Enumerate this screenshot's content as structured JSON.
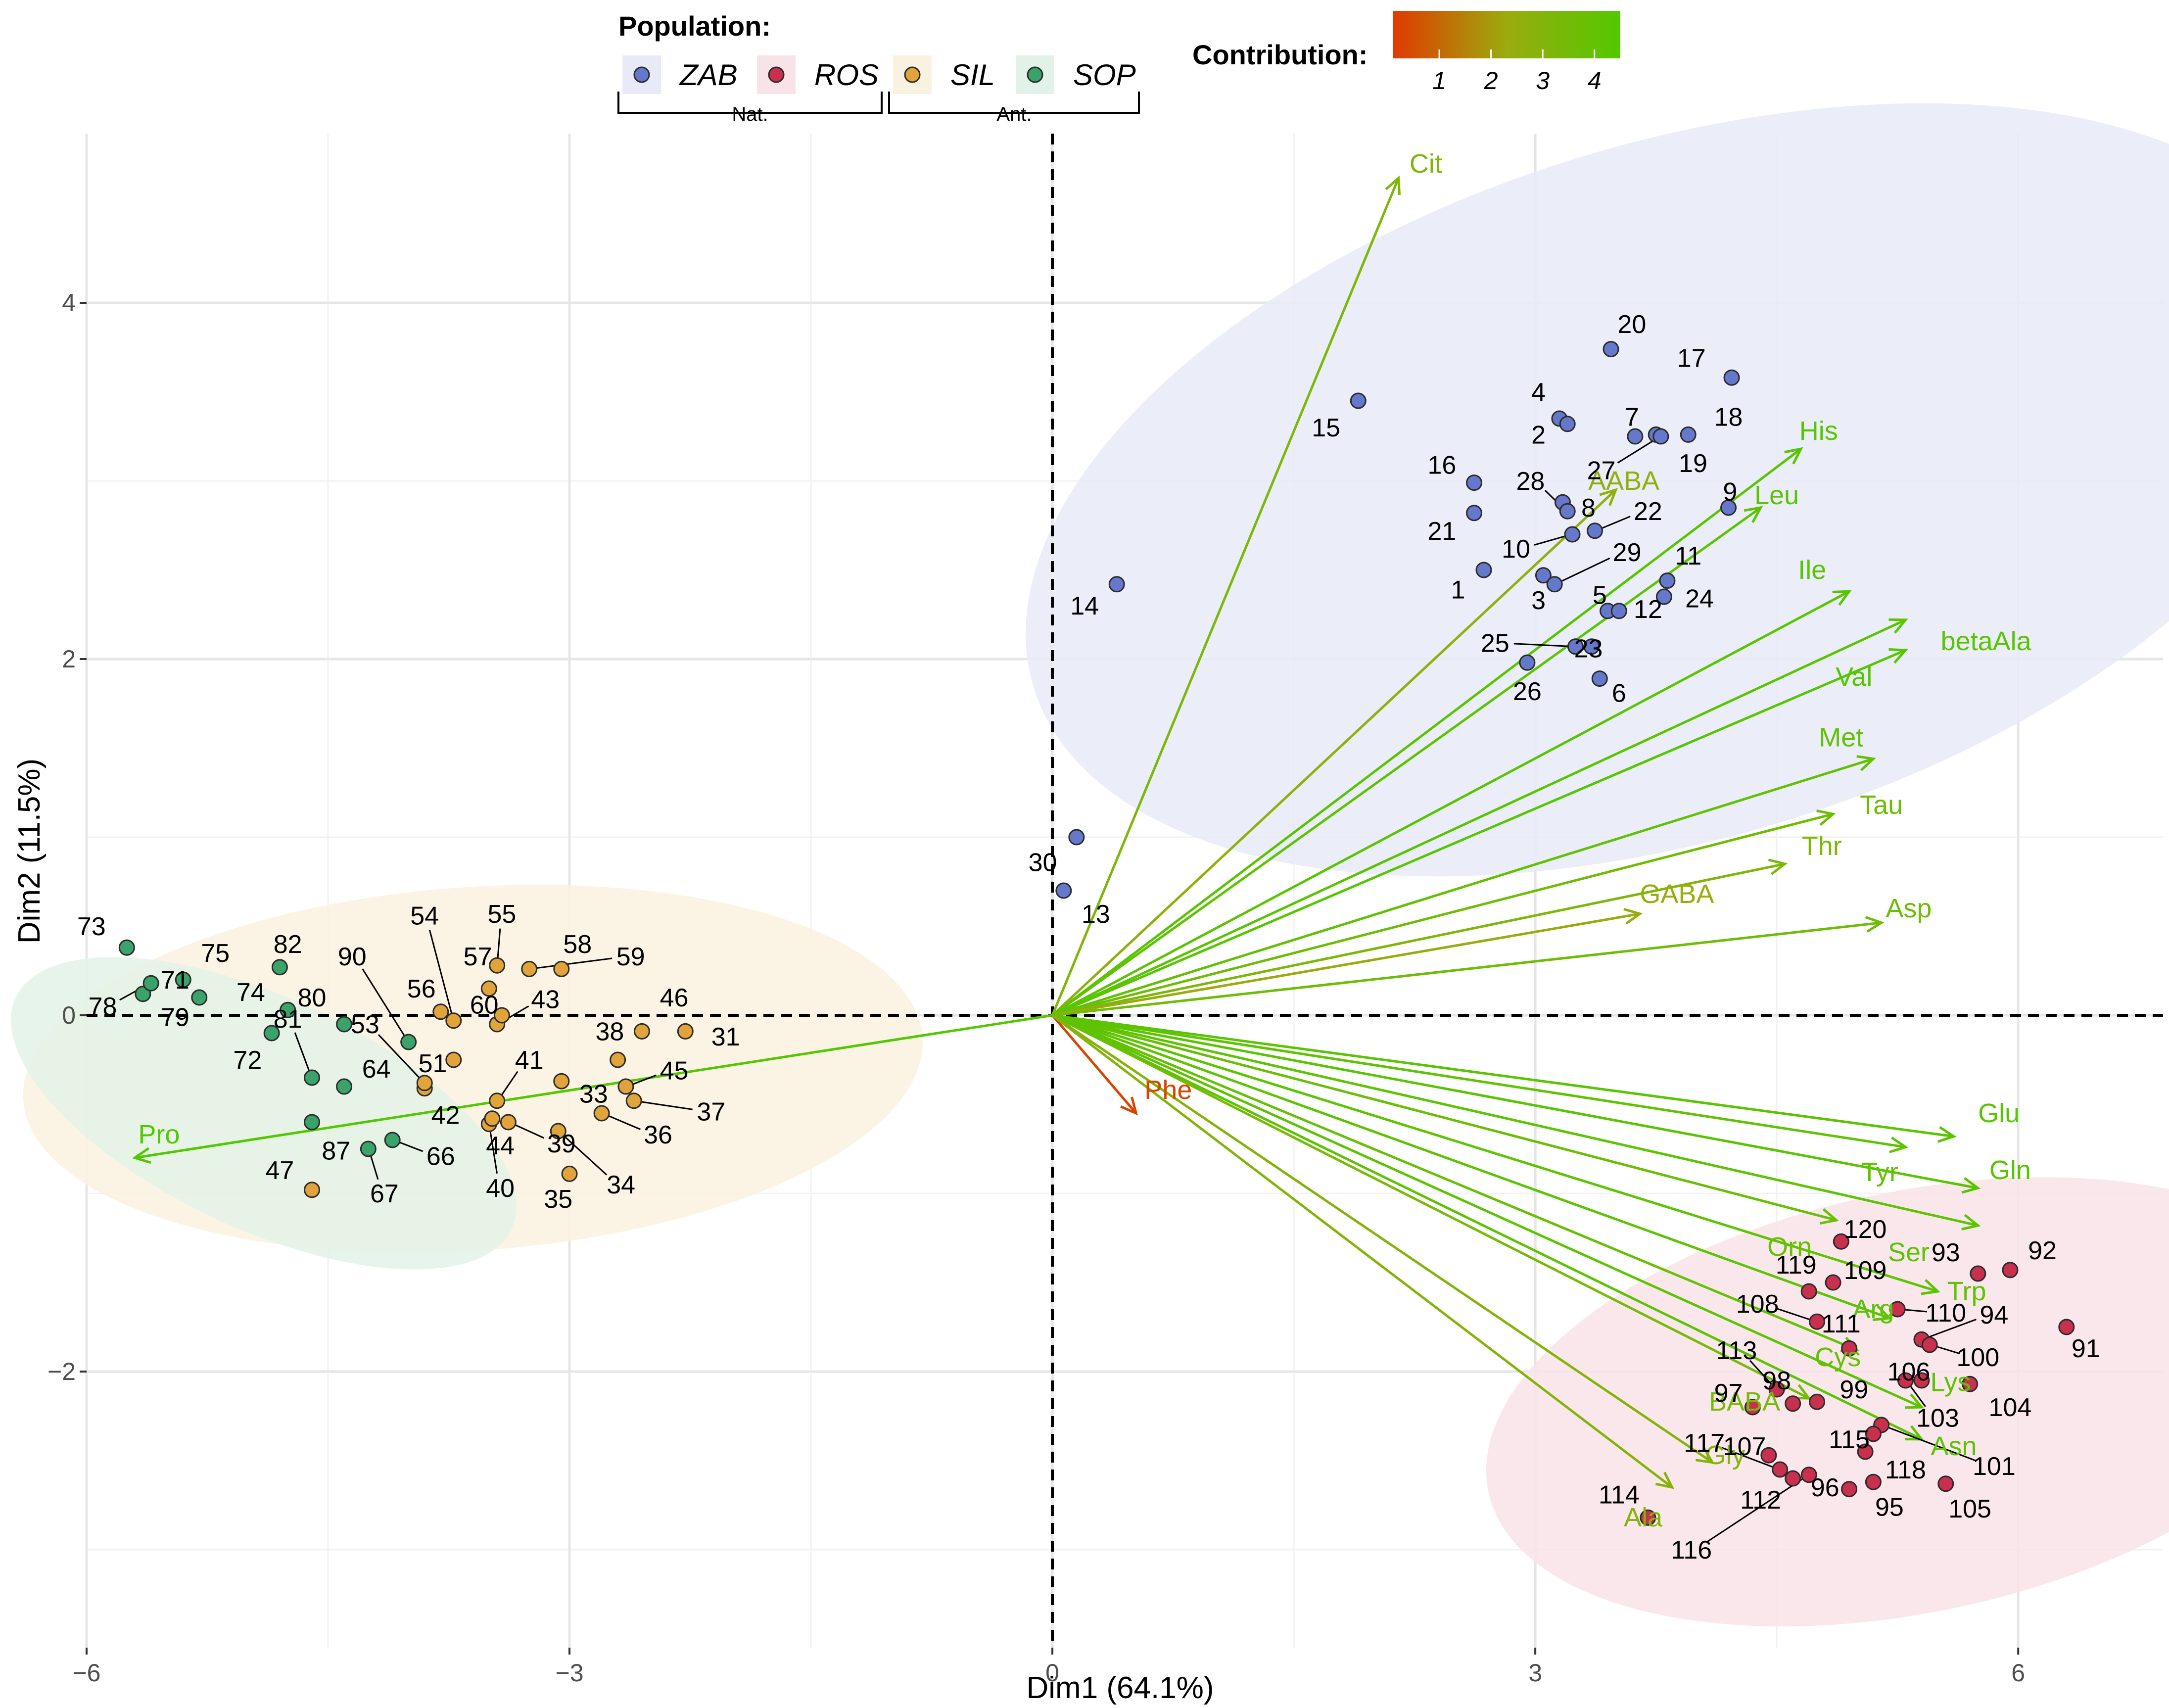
{
  "chart_data": {
    "type": "biplot",
    "xlabel": "Dim1 (64.1%)",
    "ylabel": "Dim2 (11.5%)",
    "xlim": [
      -6.0,
      6.9
    ],
    "ylim": [
      -3.55,
      4.95
    ],
    "xticks": [
      -6,
      -3,
      0,
      3,
      6
    ],
    "xtick_labels": [
      "−6",
      "−3",
      "0",
      "3",
      "6"
    ],
    "yticks": [
      -2,
      0,
      2,
      4
    ],
    "ytick_labels": [
      "−2",
      "0",
      "2",
      "4"
    ],
    "legend": {
      "title": "Population:",
      "groups": [
        {
          "name": "ZAB",
          "color": "#6678cc",
          "fill": "#e8eaf7"
        },
        {
          "name": "ROS",
          "color": "#c8304e",
          "fill": "#f8e3e8"
        },
        {
          "name": "SIL",
          "color": "#e0a43a",
          "fill": "#faf2e1"
        },
        {
          "name": "SOP",
          "color": "#3aa36a",
          "fill": "#e3f2e8"
        }
      ],
      "brackets": [
        "Nat.",
        "Ant."
      ]
    },
    "colorbar": {
      "title": "Contribution:",
      "ticks": [
        "1",
        "2",
        "3",
        "4"
      ],
      "tick_values": [
        1,
        2,
        3,
        4
      ],
      "range": [
        0.1,
        4.5
      ],
      "colors": [
        "#e03a00",
        "#9bab0e",
        "#52c800"
      ]
    },
    "ellipses": [
      {
        "group": "ZAB",
        "cx": 3.9,
        "cy": 2.95,
        "rx": 4.2,
        "ry": 1.95,
        "angle": 17
      },
      {
        "group": "ROS",
        "cx": 5.35,
        "cy": -2.17,
        "rx": 2.7,
        "ry": 1.18,
        "angle": 12
      },
      {
        "group": "SIL",
        "cx": -3.6,
        "cy": -0.3,
        "rx": 2.8,
        "ry": 1.02,
        "angle": 4
      },
      {
        "group": "SOP",
        "cx": -4.9,
        "cy": -0.55,
        "rx": 1.7,
        "ry": 0.65,
        "angle": -25
      }
    ],
    "variables": [
      {
        "name": "Cit",
        "x": 2.15,
        "y": 4.7,
        "contrib": 3.2,
        "lx": 2.32,
        "ly": 4.78
      },
      {
        "name": "His",
        "x": 4.65,
        "y": 3.18,
        "contrib": 4.3,
        "lx": 4.76,
        "ly": 3.28
      },
      {
        "name": "AABA",
        "x": 3.5,
        "y": 2.95,
        "contrib": 2.6,
        "lx": 3.55,
        "ly": 3.0
      },
      {
        "name": "Leu",
        "x": 4.4,
        "y": 2.85,
        "contrib": 4.2,
        "lx": 4.5,
        "ly": 2.92
      },
      {
        "name": "Ile",
        "x": 4.95,
        "y": 2.38,
        "contrib": 4.3,
        "lx": 4.72,
        "ly": 2.5
      },
      {
        "name": "betaAla",
        "x": 5.3,
        "y": 2.22,
        "contrib": 4.3,
        "lx": 5.8,
        "ly": 2.1
      },
      {
        "name": "Val",
        "x": 5.3,
        "y": 2.05,
        "contrib": 4.4,
        "lx": 4.98,
        "ly": 1.9
      },
      {
        "name": "Met",
        "x": 5.1,
        "y": 1.44,
        "contrib": 4.0,
        "lx": 4.9,
        "ly": 1.56
      },
      {
        "name": "Tau",
        "x": 4.85,
        "y": 1.13,
        "contrib": 3.7,
        "lx": 5.15,
        "ly": 1.18
      },
      {
        "name": "Thr",
        "x": 4.55,
        "y": 0.85,
        "contrib": 3.2,
        "lx": 4.78,
        "ly": 0.95
      },
      {
        "name": "GABA",
        "x": 3.65,
        "y": 0.57,
        "contrib": 2.4,
        "lx": 3.88,
        "ly": 0.68
      },
      {
        "name": "Asp",
        "x": 5.15,
        "y": 0.52,
        "contrib": 3.7,
        "lx": 5.32,
        "ly": 0.6
      },
      {
        "name": "Pro",
        "x": -5.7,
        "y": -0.8,
        "contrib": 4.5,
        "lx": -5.55,
        "ly": -0.67
      },
      {
        "name": "Phe",
        "x": 0.52,
        "y": -0.55,
        "contrib": 0.3,
        "lx": 0.72,
        "ly": -0.42
      },
      {
        "name": "Glu",
        "x": 5.6,
        "y": -0.68,
        "contrib": 4.3,
        "lx": 5.88,
        "ly": -0.55
      },
      {
        "name": "Tyr",
        "x": 5.3,
        "y": -0.74,
        "contrib": 4.1,
        "lx": 5.14,
        "ly": -0.88
      },
      {
        "name": "Gln",
        "x": 5.75,
        "y": -0.97,
        "contrib": 4.3,
        "lx": 5.95,
        "ly": -0.87
      },
      {
        "name": "Ser",
        "x": 5.75,
        "y": -1.18,
        "contrib": 4.2,
        "lx": 5.32,
        "ly": -1.33
      },
      {
        "name": "Orn",
        "x": 4.87,
        "y": -1.15,
        "contrib": 3.8,
        "lx": 4.58,
        "ly": -1.3
      },
      {
        "name": "Trp",
        "x": 5.5,
        "y": -1.55,
        "contrib": 4.2,
        "lx": 5.68,
        "ly": -1.55
      },
      {
        "name": "Arg",
        "x": 5.2,
        "y": -1.7,
        "contrib": 4.2,
        "lx": 5.1,
        "ly": -1.65
      },
      {
        "name": "Cys",
        "x": 5.0,
        "y": -1.88,
        "contrib": 3.9,
        "lx": 4.88,
        "ly": -1.92
      },
      {
        "name": "Lys",
        "x": 5.4,
        "y": -2.2,
        "contrib": 4.2,
        "lx": 5.58,
        "ly": -2.06
      },
      {
        "name": "BABA",
        "x": 4.7,
        "y": -2.15,
        "contrib": 3.4,
        "lx": 4.3,
        "ly": -2.17
      },
      {
        "name": "Asn",
        "x": 5.4,
        "y": -2.38,
        "contrib": 4.2,
        "lx": 5.6,
        "ly": -2.42
      },
      {
        "name": "Gly",
        "x": 4.1,
        "y": -2.51,
        "contrib": 3.0,
        "lx": 4.18,
        "ly": -2.47
      },
      {
        "name": "Ala",
        "x": 3.85,
        "y": -2.65,
        "contrib": 3.0,
        "lx": 3.67,
        "ly": -2.82
      }
    ],
    "points": [
      {
        "id": "1",
        "group": "ZAB",
        "x": 2.68,
        "y": 2.5,
        "lx": 2.52,
        "ly": 2.39
      },
      {
        "id": "2",
        "group": "ZAB",
        "x": 3.15,
        "y": 3.35,
        "lx": 3.02,
        "ly": 3.26
      },
      {
        "id": "3",
        "group": "ZAB",
        "x": 3.05,
        "y": 2.47,
        "lx": 3.02,
        "ly": 2.33
      },
      {
        "id": "4",
        "group": "ZAB",
        "x": 3.2,
        "y": 3.32,
        "lx": 3.02,
        "ly": 3.5
      },
      {
        "id": "5",
        "group": "ZAB",
        "x": 3.45,
        "y": 2.27,
        "lx": 3.4,
        "ly": 2.36
      },
      {
        "id": "6",
        "group": "ZAB",
        "x": 3.4,
        "y": 1.89,
        "lx": 3.52,
        "ly": 1.81
      },
      {
        "id": "7",
        "group": "ZAB",
        "x": 3.62,
        "y": 3.25,
        "lx": 3.6,
        "ly": 3.36
      },
      {
        "id": "8",
        "group": "ZAB",
        "x": 3.17,
        "y": 2.88,
        "lx": 3.33,
        "ly": 2.85
      },
      {
        "id": "9",
        "group": "ZAB",
        "x": 4.2,
        "y": 2.85,
        "lx": 4.21,
        "ly": 2.94
      },
      {
        "id": "10",
        "group": "ZAB",
        "x": 3.23,
        "y": 2.7,
        "lx": 2.88,
        "ly": 2.62
      },
      {
        "id": "11",
        "group": "ZAB",
        "x": 3.82,
        "y": 2.44,
        "lx": 3.95,
        "ly": 2.58
      },
      {
        "id": "12",
        "group": "ZAB",
        "x": 3.52,
        "y": 2.27,
        "lx": 3.7,
        "ly": 2.28
      },
      {
        "id": "13",
        "group": "ZAB",
        "x": 0.07,
        "y": 0.7,
        "lx": 0.27,
        "ly": 0.57
      },
      {
        "id": "14",
        "group": "ZAB",
        "x": 0.4,
        "y": 2.42,
        "lx": 0.2,
        "ly": 2.3
      },
      {
        "id": "15",
        "group": "ZAB",
        "x": 1.9,
        "y": 3.45,
        "lx": 1.7,
        "ly": 3.3
      },
      {
        "id": "16",
        "group": "ZAB",
        "x": 2.62,
        "y": 2.99,
        "lx": 2.42,
        "ly": 3.09
      },
      {
        "id": "17",
        "group": "ZAB",
        "x": 4.22,
        "y": 3.58,
        "lx": 3.97,
        "ly": 3.69
      },
      {
        "id": "18",
        "group": "ZAB",
        "x": 3.95,
        "y": 3.26,
        "lx": 4.2,
        "ly": 3.36
      },
      {
        "id": "19",
        "group": "ZAB",
        "x": 3.75,
        "y": 3.26,
        "lx": 3.98,
        "ly": 3.1
      },
      {
        "id": "20",
        "group": "ZAB",
        "x": 3.47,
        "y": 3.74,
        "lx": 3.6,
        "ly": 3.88
      },
      {
        "id": "21",
        "group": "ZAB",
        "x": 2.62,
        "y": 2.82,
        "lx": 2.42,
        "ly": 2.72
      },
      {
        "id": "22",
        "group": "ZAB",
        "x": 3.37,
        "y": 2.72,
        "lx": 3.7,
        "ly": 2.83
      },
      {
        "id": "23",
        "group": "ZAB",
        "x": 3.35,
        "y": 2.07,
        "lx": 3.33,
        "ly": 2.06
      },
      {
        "id": "24",
        "group": "ZAB",
        "x": 3.8,
        "y": 2.35,
        "lx": 4.02,
        "ly": 2.34
      },
      {
        "id": "25",
        "group": "ZAB",
        "x": 3.25,
        "y": 2.07,
        "lx": 2.75,
        "ly": 2.09
      },
      {
        "id": "26",
        "group": "ZAB",
        "x": 2.95,
        "y": 1.98,
        "lx": 2.95,
        "ly": 1.82
      },
      {
        "id": "27",
        "group": "ZAB",
        "x": 3.78,
        "y": 3.25,
        "lx": 3.41,
        "ly": 3.06
      },
      {
        "id": "28",
        "group": "ZAB",
        "x": 3.2,
        "y": 2.83,
        "lx": 2.97,
        "ly": 3.0
      },
      {
        "id": "29",
        "group": "ZAB",
        "x": 3.12,
        "y": 2.42,
        "lx": 3.57,
        "ly": 2.6
      },
      {
        "id": "30",
        "group": "ZAB",
        "x": 0.15,
        "y": 1.0,
        "lx": -0.06,
        "ly": 0.86
      },
      {
        "id": "31",
        "group": "SIL",
        "x": -2.28,
        "y": -0.09,
        "lx": -2.03,
        "ly": -0.12
      },
      {
        "id": "33",
        "group": "SIL",
        "x": -3.05,
        "y": -0.37,
        "lx": -2.85,
        "ly": -0.44
      },
      {
        "id": "34",
        "group": "SIL",
        "x": -3.07,
        "y": -0.65,
        "lx": -2.68,
        "ly": -0.95
      },
      {
        "id": "35",
        "group": "SIL",
        "x": -3.0,
        "y": -0.89,
        "lx": -3.07,
        "ly": -1.03
      },
      {
        "id": "36",
        "group": "SIL",
        "x": -2.8,
        "y": -0.55,
        "lx": -2.45,
        "ly": -0.67
      },
      {
        "id": "37",
        "group": "SIL",
        "x": -2.6,
        "y": -0.48,
        "lx": -2.12,
        "ly": -0.54
      },
      {
        "id": "38",
        "group": "SIL",
        "x": -2.7,
        "y": -0.25,
        "lx": -2.75,
        "ly": -0.09
      },
      {
        "id": "39",
        "group": "SIL",
        "x": -3.38,
        "y": -0.6,
        "lx": -3.05,
        "ly": -0.72
      },
      {
        "id": "40",
        "group": "SIL",
        "x": -3.5,
        "y": -0.61,
        "lx": -3.43,
        "ly": -0.97
      },
      {
        "id": "41",
        "group": "SIL",
        "x": -3.45,
        "y": -0.48,
        "lx": -3.25,
        "ly": -0.25
      },
      {
        "id": "42",
        "group": "SIL",
        "x": -3.9,
        "y": -0.41,
        "lx": -3.77,
        "ly": -0.56
      },
      {
        "id": "43",
        "group": "SIL",
        "x": -3.45,
        "y": -0.05,
        "lx": -3.15,
        "ly": 0.09
      },
      {
        "id": "44",
        "group": "SIL",
        "x": -3.48,
        "y": -0.58,
        "lx": -3.43,
        "ly": -0.73
      },
      {
        "id": "45",
        "group": "SIL",
        "x": -2.65,
        "y": -0.4,
        "lx": -2.35,
        "ly": -0.31
      },
      {
        "id": "46",
        "group": "SIL",
        "x": -2.55,
        "y": -0.09,
        "lx": -2.35,
        "ly": 0.1
      },
      {
        "id": "47",
        "group": "SIL",
        "x": -4.6,
        "y": -0.98,
        "lx": -4.8,
        "ly": -0.87
      },
      {
        "id": "51",
        "group": "SIL",
        "x": -3.72,
        "y": -0.25,
        "lx": -3.85,
        "ly": -0.27
      },
      {
        "id": "53",
        "group": "SIL",
        "x": -3.9,
        "y": -0.38,
        "lx": -4.27,
        "ly": -0.05
      },
      {
        "id": "54",
        "group": "SIL",
        "x": -3.72,
        "y": -0.03,
        "lx": -3.9,
        "ly": 0.56
      },
      {
        "id": "55",
        "group": "SIL",
        "x": -3.45,
        "y": 0.28,
        "lx": -3.42,
        "ly": 0.57
      },
      {
        "id": "56",
        "group": "SIL",
        "x": -3.8,
        "y": 0.02,
        "lx": -3.92,
        "ly": 0.15
      },
      {
        "id": "57",
        "group": "SIL",
        "x": -3.5,
        "y": 0.15,
        "lx": -3.57,
        "ly": 0.33
      },
      {
        "id": "58",
        "group": "SIL",
        "x": -3.05,
        "y": 0.26,
        "lx": -2.95,
        "ly": 0.4
      },
      {
        "id": "59",
        "group": "SIL",
        "x": -3.25,
        "y": 0.26,
        "lx": -2.62,
        "ly": 0.33
      },
      {
        "id": "60",
        "group": "SIL",
        "x": -3.42,
        "y": 0.0,
        "lx": -3.53,
        "ly": 0.06
      },
      {
        "id": "64",
        "group": "SOP",
        "x": -4.4,
        "y": -0.4,
        "lx": -4.2,
        "ly": -0.3
      },
      {
        "id": "66",
        "group": "SOP",
        "x": -4.1,
        "y": -0.7,
        "lx": -3.8,
        "ly": -0.79
      },
      {
        "id": "67",
        "group": "SOP",
        "x": -4.25,
        "y": -0.75,
        "lx": -4.15,
        "ly": -1.0
      },
      {
        "id": "71",
        "group": "SOP",
        "x": -5.65,
        "y": 0.12,
        "lx": -5.45,
        "ly": 0.2
      },
      {
        "id": "72",
        "group": "SOP",
        "x": -4.85,
        "y": -0.1,
        "lx": -5.0,
        "ly": -0.25
      },
      {
        "id": "73",
        "group": "SOP",
        "x": -5.75,
        "y": 0.38,
        "lx": -5.97,
        "ly": 0.5
      },
      {
        "id": "74",
        "group": "SOP",
        "x": -4.75,
        "y": 0.03,
        "lx": -4.98,
        "ly": 0.13
      },
      {
        "id": "75",
        "group": "SOP",
        "x": -5.4,
        "y": 0.2,
        "lx": -5.2,
        "ly": 0.35
      },
      {
        "id": "78",
        "group": "SOP",
        "x": -5.6,
        "y": 0.18,
        "lx": -5.9,
        "ly": 0.05
      },
      {
        "id": "79",
        "group": "SOP",
        "x": -5.3,
        "y": 0.1,
        "lx": -5.45,
        "ly": -0.01
      },
      {
        "id": "80",
        "group": "SOP",
        "x": -4.4,
        "y": -0.05,
        "lx": -4.6,
        "ly": 0.1
      },
      {
        "id": "81",
        "group": "SOP",
        "x": -4.6,
        "y": -0.35,
        "lx": -4.75,
        "ly": -0.02
      },
      {
        "id": "82",
        "group": "SOP",
        "x": -4.8,
        "y": 0.27,
        "lx": -4.75,
        "ly": 0.4
      },
      {
        "id": "87",
        "group": "SOP",
        "x": -4.6,
        "y": -0.6,
        "lx": -4.45,
        "ly": -0.76
      },
      {
        "id": "90",
        "group": "SOP",
        "x": -4.0,
        "y": -0.15,
        "lx": -4.35,
        "ly": 0.33
      },
      {
        "id": "91",
        "group": "ROS",
        "x": 6.3,
        "y": -1.75,
        "lx": 6.42,
        "ly": -1.87
      },
      {
        "id": "92",
        "group": "ROS",
        "x": 5.95,
        "y": -1.43,
        "lx": 6.15,
        "ly": -1.32
      },
      {
        "id": "93",
        "group": "ROS",
        "x": 5.75,
        "y": -1.45,
        "lx": 5.55,
        "ly": -1.33
      },
      {
        "id": "94",
        "group": "ROS",
        "x": 5.4,
        "y": -1.82,
        "lx": 5.85,
        "ly": -1.68
      },
      {
        "id": "95",
        "group": "ROS",
        "x": 5.1,
        "y": -2.62,
        "lx": 5.2,
        "ly": -2.76
      },
      {
        "id": "96",
        "group": "ROS",
        "x": 4.95,
        "y": -2.66,
        "lx": 4.8,
        "ly": -2.65
      },
      {
        "id": "97",
        "group": "ROS",
        "x": 4.35,
        "y": -2.2,
        "lx": 4.2,
        "ly": -2.12
      },
      {
        "id": "98",
        "group": "ROS",
        "x": 4.6,
        "y": -2.18,
        "lx": 4.5,
        "ly": -2.05
      },
      {
        "id": "99",
        "group": "ROS",
        "x": 4.75,
        "y": -2.17,
        "lx": 4.98,
        "ly": -2.1
      },
      {
        "id": "100",
        "group": "ROS",
        "x": 5.45,
        "y": -1.85,
        "lx": 5.75,
        "ly": -1.92
      },
      {
        "id": "101",
        "group": "ROS",
        "x": 5.15,
        "y": -2.3,
        "lx": 5.85,
        "ly": -2.53
      },
      {
        "id": "103",
        "group": "ROS",
        "x": 5.3,
        "y": -2.05,
        "lx": 5.5,
        "ly": -2.26
      },
      {
        "id": "104",
        "group": "ROS",
        "x": 5.7,
        "y": -2.07,
        "lx": 5.95,
        "ly": -2.2
      },
      {
        "id": "105",
        "group": "ROS",
        "x": 5.55,
        "y": -2.63,
        "lx": 5.7,
        "ly": -2.77
      },
      {
        "id": "106",
        "group": "ROS",
        "x": 5.4,
        "y": -2.05,
        "lx": 5.32,
        "ly": -2.0
      },
      {
        "id": "107",
        "group": "ROS",
        "x": 4.45,
        "y": -2.47,
        "lx": 4.3,
        "ly": -2.42
      },
      {
        "id": "108",
        "group": "ROS",
        "x": 4.75,
        "y": -1.72,
        "lx": 4.38,
        "ly": -1.62
      },
      {
        "id": "109",
        "group": "ROS",
        "x": 4.85,
        "y": -1.5,
        "lx": 5.05,
        "ly": -1.43
      },
      {
        "id": "110",
        "group": "ROS",
        "x": 5.25,
        "y": -1.65,
        "lx": 5.55,
        "ly": -1.67
      },
      {
        "id": "111",
        "group": "ROS",
        "x": 4.95,
        "y": -1.87,
        "lx": 4.9,
        "ly": -1.73
      },
      {
        "id": "112",
        "group": "ROS",
        "x": 4.6,
        "y": -2.6,
        "lx": 4.4,
        "ly": -2.72
      },
      {
        "id": "113",
        "group": "ROS",
        "x": 4.5,
        "y": -2.1,
        "lx": 4.25,
        "ly": -1.88
      },
      {
        "id": "114",
        "group": "ROS",
        "x": 3.7,
        "y": -2.82,
        "lx": 3.52,
        "ly": -2.69
      },
      {
        "id": "115",
        "group": "ROS",
        "x": 5.1,
        "y": -2.35,
        "lx": 4.95,
        "ly": -2.38
      },
      {
        "id": "116",
        "group": "ROS",
        "x": 4.7,
        "y": -2.58,
        "lx": 3.97,
        "ly": -3.0
      },
      {
        "id": "117",
        "group": "ROS",
        "x": 4.52,
        "y": -2.55,
        "lx": 4.05,
        "ly": -2.4
      },
      {
        "id": "118",
        "group": "ROS",
        "x": 5.05,
        "y": -2.45,
        "lx": 5.3,
        "ly": -2.55
      },
      {
        "id": "119",
        "group": "ROS",
        "x": 4.7,
        "y": -1.55,
        "lx": 4.62,
        "ly": -1.4
      },
      {
        "id": "120",
        "group": "ROS",
        "x": 4.9,
        "y": -1.27,
        "lx": 5.05,
        "ly": -1.2
      }
    ]
  }
}
